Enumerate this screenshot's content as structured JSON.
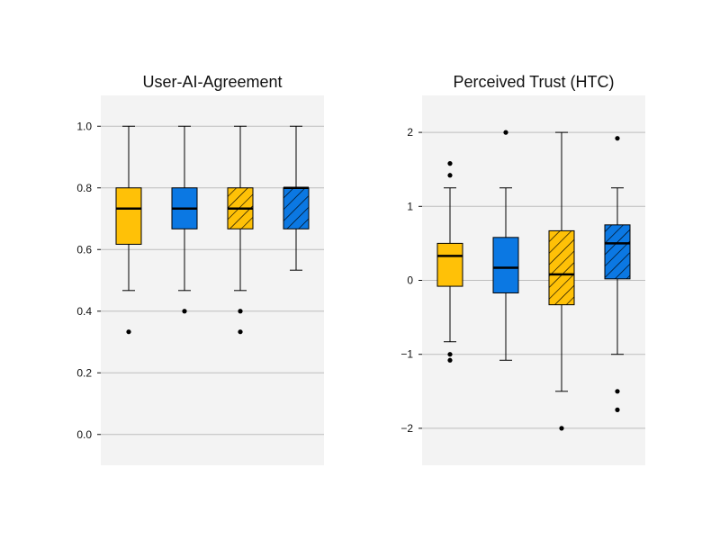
{
  "colors": {
    "panel_background": "#f3f3f3",
    "grid": "#bdbdbd",
    "yellow": "#ffc107",
    "blue": "#0b78e3",
    "ink": "#000000"
  },
  "chart_data": [
    {
      "type": "box",
      "title": "User-AI-Agreement",
      "xlabel": "",
      "ylabel": "",
      "ylim": [
        -0.1,
        1.1
      ],
      "yticks": [
        0.0,
        0.2,
        0.4,
        0.6,
        0.8,
        1.0
      ],
      "ytick_labels": [
        "0.0",
        "0.2",
        "0.4",
        "0.6",
        "0.8",
        "1.0"
      ],
      "grid": "horizontal",
      "boxes": [
        {
          "color": "yellow",
          "hatch": false,
          "whisker_low": 0.467,
          "q1": 0.617,
          "median": 0.733,
          "q3": 0.8,
          "whisker_high": 1.0,
          "outliers": [
            0.333
          ]
        },
        {
          "color": "blue",
          "hatch": false,
          "whisker_low": 0.467,
          "q1": 0.667,
          "median": 0.733,
          "q3": 0.8,
          "whisker_high": 1.0,
          "outliers": [
            0.4
          ]
        },
        {
          "color": "yellow",
          "hatch": true,
          "whisker_low": 0.467,
          "q1": 0.667,
          "median": 0.733,
          "q3": 0.8,
          "whisker_high": 1.0,
          "outliers": [
            0.4,
            0.333
          ]
        },
        {
          "color": "blue",
          "hatch": true,
          "whisker_low": 0.533,
          "q1": 0.667,
          "median": 0.8,
          "q3": 0.8,
          "whisker_high": 1.0,
          "outliers": []
        }
      ]
    },
    {
      "type": "box",
      "title": "Perceived Trust (HTC)",
      "xlabel": "",
      "ylabel": "",
      "ylim": [
        -2.5,
        2.5
      ],
      "yticks": [
        -2,
        -1,
        0,
        1,
        2
      ],
      "ytick_labels": [
        "−2",
        "−1",
        "0",
        "1",
        "2"
      ],
      "grid": "horizontal",
      "boxes": [
        {
          "color": "yellow",
          "hatch": false,
          "whisker_low": -0.83,
          "q1": -0.08,
          "median": 0.33,
          "q3": 0.5,
          "whisker_high": 1.25,
          "outliers": [
            1.58,
            1.42,
            -1.0,
            -1.08
          ]
        },
        {
          "color": "blue",
          "hatch": false,
          "whisker_low": -1.08,
          "q1": -0.17,
          "median": 0.17,
          "q3": 0.58,
          "whisker_high": 1.25,
          "outliers": [
            2.0
          ]
        },
        {
          "color": "yellow",
          "hatch": true,
          "whisker_low": -1.5,
          "q1": -0.33,
          "median": 0.08,
          "q3": 0.67,
          "whisker_high": 2.0,
          "outliers": [
            -2.0
          ]
        },
        {
          "color": "blue",
          "hatch": true,
          "whisker_low": -1.0,
          "q1": 0.02,
          "median": 0.5,
          "q3": 0.75,
          "whisker_high": 1.25,
          "outliers": [
            1.92,
            -1.5,
            -1.75
          ]
        }
      ]
    }
  ]
}
